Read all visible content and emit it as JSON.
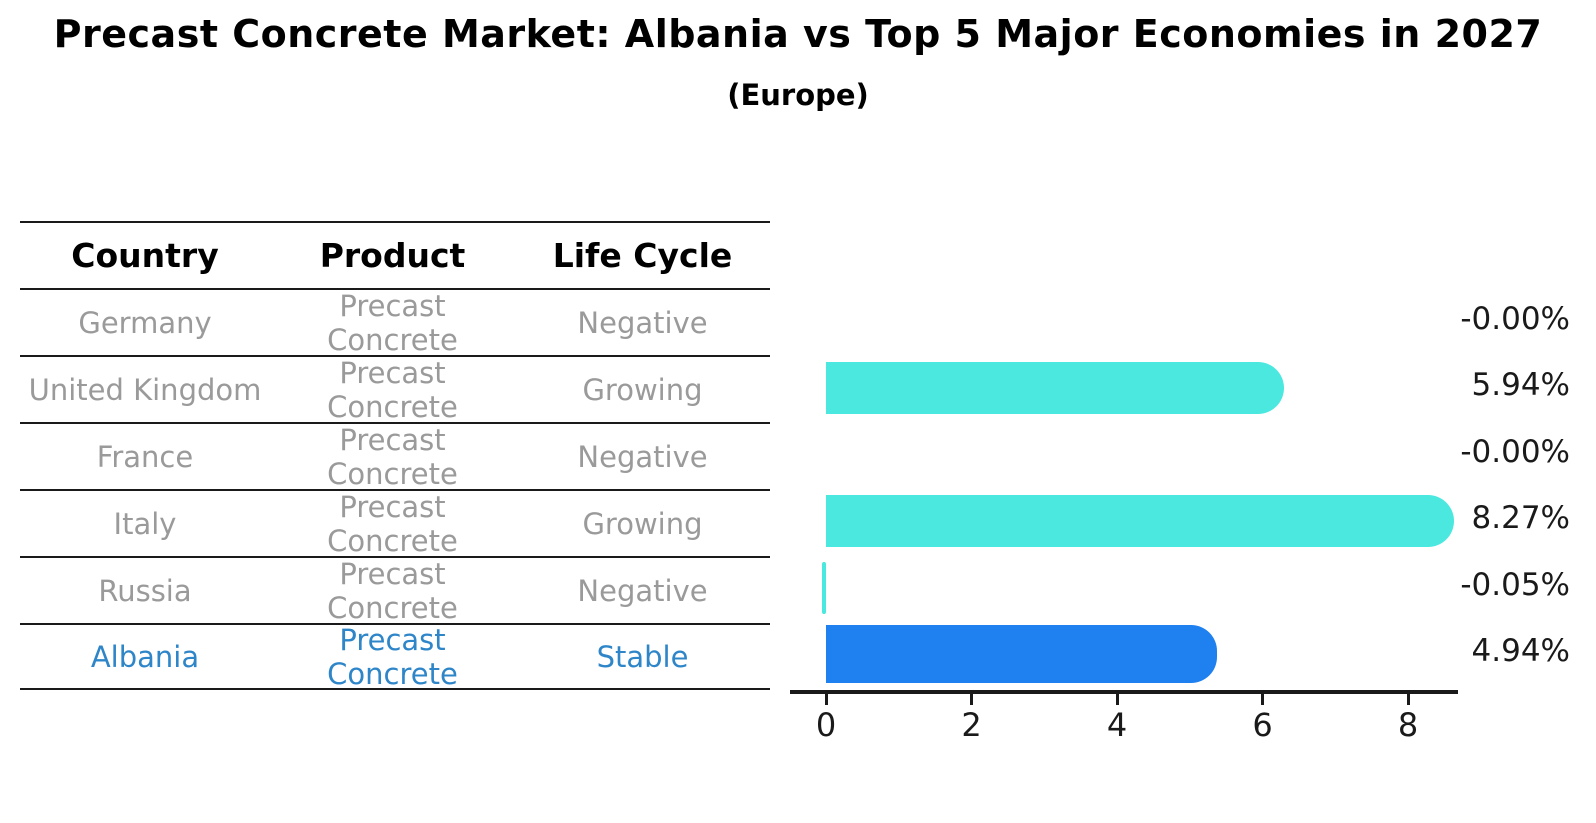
{
  "title": "Precast Concrete Market: Albania vs Top 5 Major Economies in 2027",
  "subtitle": "(Europe)",
  "table": {
    "headers": [
      "Country",
      "Product",
      "Life Cycle"
    ],
    "rows": [
      {
        "country": "Germany",
        "product": "Precast Concrete",
        "life_cycle": "Negative"
      },
      {
        "country": "United Kingdom",
        "product": "Precast Concrete",
        "life_cycle": "Growing"
      },
      {
        "country": "France",
        "product": "Precast Concrete",
        "life_cycle": "Negative"
      },
      {
        "country": "Italy",
        "product": "Precast Concrete",
        "life_cycle": "Growing"
      },
      {
        "country": "Russia",
        "product": "Precast Concrete",
        "life_cycle": "Negative"
      },
      {
        "country": "Albania",
        "product": "Precast Concrete",
        "life_cycle": "Stable"
      }
    ],
    "highlight_row": "Albania"
  },
  "chart_data": {
    "type": "bar",
    "orientation": "horizontal",
    "categories": [
      "Germany",
      "United Kingdom",
      "France",
      "Italy",
      "Russia",
      "Albania"
    ],
    "values": [
      -0.0,
      5.94,
      -0.0,
      8.27,
      -0.05,
      4.94
    ],
    "value_labels": [
      "-0.00%",
      "5.94%",
      "-0.00%",
      "8.27%",
      "-0.05%",
      "4.94%"
    ],
    "x_ticks": [
      0,
      2,
      4,
      6,
      8
    ],
    "xlim": [
      -0.5,
      8.7
    ],
    "grid": false,
    "legend": false,
    "highlight_index": 5,
    "highlight_edge_style": "dotted"
  },
  "colors": {
    "bar_color": "#4AE8DF",
    "highlight_color": "#1F80F0",
    "highlight_text": "#2E86C9",
    "row_text": "#9A9A9A",
    "header_text": "#000000",
    "title_text": "#000000"
  }
}
